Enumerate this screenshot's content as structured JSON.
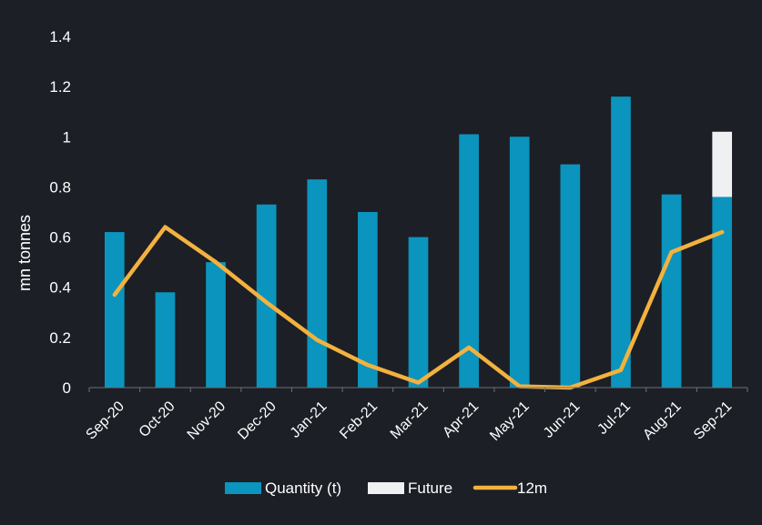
{
  "chart_data": {
    "type": "bar",
    "ylabel": "mn tonnes",
    "ylim": [
      0,
      1.4
    ],
    "yticks": [
      "0",
      "0.2",
      "0.4",
      "0.6",
      "0.8",
      "1",
      "1.2",
      "1.4"
    ],
    "ytick_values": [
      0,
      0.2,
      0.4,
      0.6,
      0.8,
      1.0,
      1.2,
      1.4
    ],
    "categories": [
      "Sep-20",
      "Oct-20",
      "Nov-20",
      "Dec-20",
      "Jan-21",
      "Feb-21",
      "Mar-21",
      "Apr-21",
      "May-21",
      "Jun-21",
      "Jul-21",
      "Aug-21",
      "Sep-21"
    ],
    "series": [
      {
        "name": "Quantity (t)",
        "type": "bar",
        "stack": "s",
        "color": "#0b94bd",
        "values": [
          0.62,
          0.38,
          0.5,
          0.73,
          0.83,
          0.7,
          0.6,
          1.01,
          1.0,
          0.89,
          1.16,
          0.77,
          0.76
        ]
      },
      {
        "name": "Future",
        "type": "bar",
        "stack": "s",
        "color": "#eef0f2",
        "values": [
          0,
          0,
          0,
          0,
          0,
          0,
          0,
          0,
          0,
          0,
          0,
          0,
          0.26
        ]
      },
      {
        "name": "12m",
        "type": "line",
        "color": "#f3b23e",
        "values": [
          0.37,
          0.64,
          0.5,
          0.34,
          0.19,
          0.09,
          0.02,
          0.16,
          0.005,
          0.0,
          0.07,
          0.54,
          0.62
        ]
      }
    ],
    "legend": "bottom",
    "grid": false
  }
}
